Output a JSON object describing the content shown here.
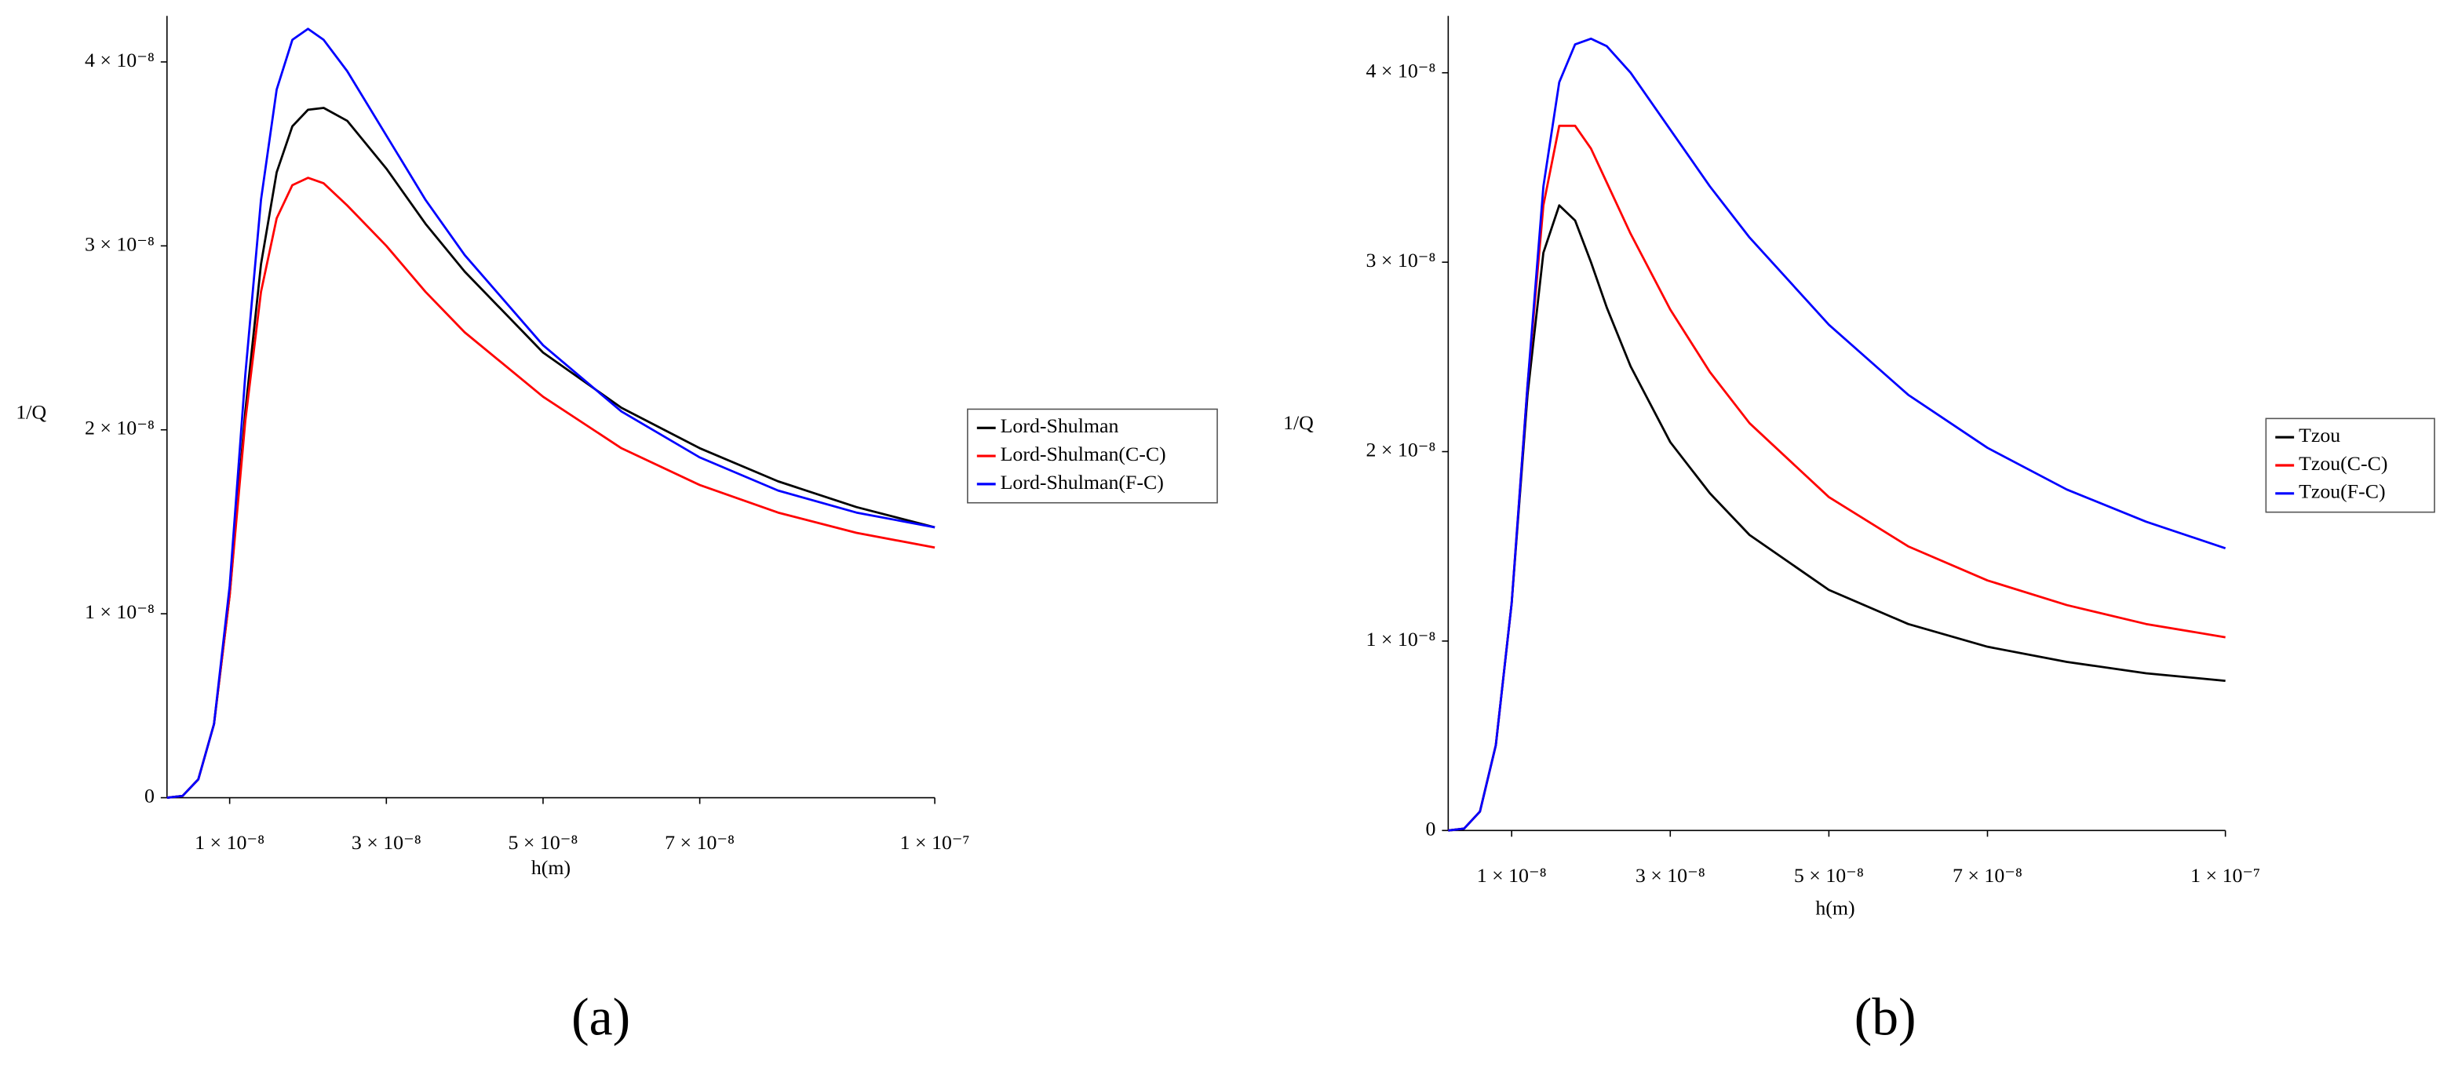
{
  "chart_data": [
    {
      "type": "line",
      "xlabel": "h(m)",
      "ylabel": "1/Q",
      "caption": "(a)",
      "legend": "right",
      "xlim": [
        2e-09,
        1e-07
      ],
      "ylim": [
        0,
        4.25e-08
      ],
      "xticks": [
        {
          "value": 1e-08,
          "label": "1 × 10⁻⁸"
        },
        {
          "value": 3e-08,
          "label": "3 × 10⁻⁸"
        },
        {
          "value": 5e-08,
          "label": "5 × 10⁻⁸"
        },
        {
          "value": 7e-08,
          "label": "7 × 10⁻⁸"
        },
        {
          "value": 1e-07,
          "label": "1 × 10⁻⁷"
        }
      ],
      "yticks": [
        0,
        {
          "value": 1e-08,
          "label": "1 × 10⁻⁸"
        },
        {
          "value": 2e-08,
          "label": "2 × 10⁻⁸"
        },
        {
          "value": 3e-08,
          "label": "3 × 10⁻⁸"
        },
        {
          "value": 4e-08,
          "label": "4 × 10⁻⁸"
        }
      ],
      "x": [
        2e-09,
        4e-09,
        6e-09,
        8e-09,
        1e-08,
        1.2e-08,
        1.4e-08,
        1.6e-08,
        1.8e-08,
        2e-08,
        2.2e-08,
        2.5e-08,
        3e-08,
        3.5e-08,
        4e-08,
        5e-08,
        6e-08,
        7e-08,
        8e-08,
        9e-08,
        1e-07
      ],
      "series": [
        {
          "name": "Lord-Shulman",
          "color": "#000000",
          "values": [
            0,
            1e-10,
            1e-09,
            4e-09,
            1.1e-08,
            2.1e-08,
            2.9e-08,
            3.4e-08,
            3.65e-08,
            3.74e-08,
            3.75e-08,
            3.68e-08,
            3.42e-08,
            3.12e-08,
            2.86e-08,
            2.42e-08,
            2.12e-08,
            1.9e-08,
            1.72e-08,
            1.58e-08,
            1.47e-08
          ]
        },
        {
          "name": "Lord-Shulman(C-C)",
          "color": "#ff0000",
          "values": [
            0,
            1e-10,
            1e-09,
            4e-09,
            1.1e-08,
            2.05e-08,
            2.75e-08,
            3.15e-08,
            3.33e-08,
            3.37e-08,
            3.34e-08,
            3.22e-08,
            3e-08,
            2.75e-08,
            2.53e-08,
            2.18e-08,
            1.9e-08,
            1.7e-08,
            1.55e-08,
            1.44e-08,
            1.36e-08
          ]
        },
        {
          "name": "Lord-Shulman(F-C)",
          "color": "#0000ff",
          "values": [
            0,
            1e-10,
            1e-09,
            4e-09,
            1.15e-08,
            2.3e-08,
            3.25e-08,
            3.85e-08,
            4.12e-08,
            4.18e-08,
            4.12e-08,
            3.95e-08,
            3.6e-08,
            3.25e-08,
            2.95e-08,
            2.46e-08,
            2.1e-08,
            1.85e-08,
            1.67e-08,
            1.55e-08,
            1.47e-08
          ]
        }
      ]
    },
    {
      "type": "line",
      "xlabel": "h(m)",
      "ylabel": "1/Q",
      "caption": "(b)",
      "legend": "right",
      "xlim": [
        2e-09,
        1e-07
      ],
      "ylim": [
        0,
        4.3e-08
      ],
      "xticks": [
        {
          "value": 1e-08,
          "label": "1 × 10⁻⁸"
        },
        {
          "value": 3e-08,
          "label": "3 × 10⁻⁸"
        },
        {
          "value": 5e-08,
          "label": "5 × 10⁻⁸"
        },
        {
          "value": 7e-08,
          "label": "7 × 10⁻⁸"
        },
        {
          "value": 1e-07,
          "label": "1 × 10⁻⁷"
        }
      ],
      "yticks": [
        0,
        {
          "value": 1e-08,
          "label": "1 × 10⁻⁸"
        },
        {
          "value": 2e-08,
          "label": "2 × 10⁻⁸"
        },
        {
          "value": 3e-08,
          "label": "3 × 10⁻⁸"
        },
        {
          "value": 4e-08,
          "label": "4 × 10⁻⁸"
        }
      ],
      "x": [
        2e-09,
        4e-09,
        6e-09,
        8e-09,
        1e-08,
        1.2e-08,
        1.4e-08,
        1.6e-08,
        1.8e-08,
        2e-08,
        2.2e-08,
        2.5e-08,
        3e-08,
        3.5e-08,
        4e-08,
        5e-08,
        6e-08,
        7e-08,
        8e-08,
        9e-08,
        1e-07
      ],
      "series": [
        {
          "name": "Tzou",
          "color": "#000000",
          "values": [
            0,
            1e-10,
            1e-09,
            4.5e-09,
            1.2e-08,
            2.3e-08,
            3.05e-08,
            3.3e-08,
            3.22e-08,
            3e-08,
            2.76e-08,
            2.45e-08,
            2.05e-08,
            1.78e-08,
            1.56e-08,
            1.27e-08,
            1.09e-08,
            9.7e-09,
            8.9e-09,
            8.3e-09,
            7.9e-09
          ]
        },
        {
          "name": "Tzou(C-C)",
          "color": "#ff0000",
          "values": [
            0,
            1e-10,
            1e-09,
            4.5e-09,
            1.2e-08,
            2.35e-08,
            3.3e-08,
            3.72e-08,
            3.72e-08,
            3.6e-08,
            3.42e-08,
            3.15e-08,
            2.75e-08,
            2.42e-08,
            2.15e-08,
            1.76e-08,
            1.5e-08,
            1.32e-08,
            1.19e-08,
            1.09e-08,
            1.02e-08
          ]
        },
        {
          "name": "Tzou(F-C)",
          "color": "#0000ff",
          "values": [
            0,
            1e-10,
            1e-09,
            4.5e-09,
            1.2e-08,
            2.35e-08,
            3.4e-08,
            3.95e-08,
            4.15e-08,
            4.18e-08,
            4.14e-08,
            4e-08,
            3.7e-08,
            3.4e-08,
            3.13e-08,
            2.67e-08,
            2.3e-08,
            2.02e-08,
            1.8e-08,
            1.63e-08,
            1.49e-08
          ]
        }
      ]
    }
  ]
}
